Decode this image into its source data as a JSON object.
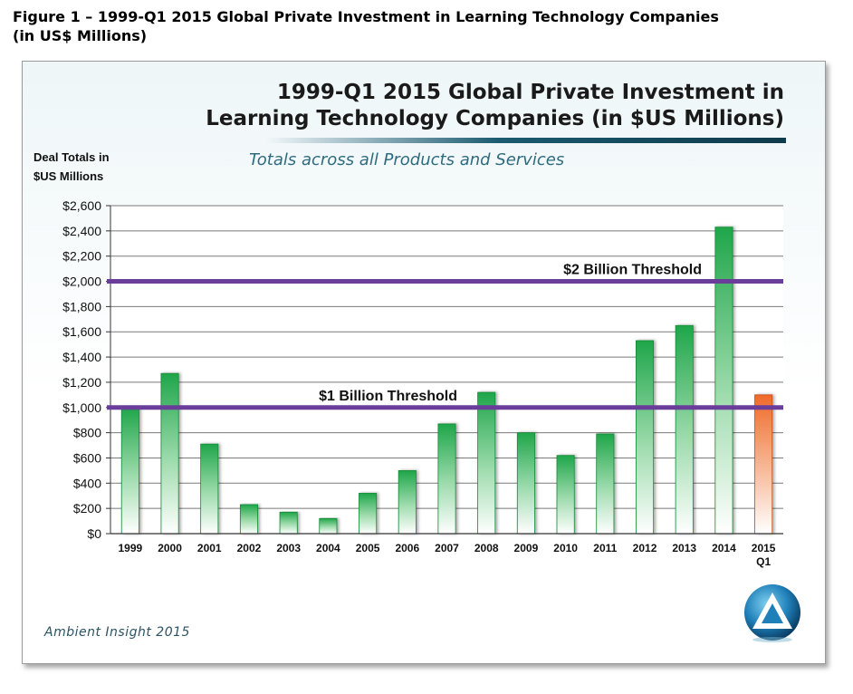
{
  "figure_caption_line1": "Figure 1 – 1999-Q1 2015 Global Private Investment in Learning Technology Companies",
  "figure_caption_line2": "(in US$ Millions)",
  "chart_data": {
    "type": "bar",
    "title_line1": "1999-Q1 2015 Global Private Investment in",
    "title_line2": "Learning Technology Companies (in $US Millions)",
    "subtitle": "Totals across all Products and Services",
    "ylabel_line1": "Deal Totals in",
    "ylabel_line2": "$US Millions",
    "categories": [
      "1999",
      "2000",
      "2001",
      "2002",
      "2003",
      "2004",
      "2005",
      "2006",
      "2007",
      "2008",
      "2009",
      "2010",
      "2011",
      "2012",
      "2013",
      "2014",
      "2015 Q1"
    ],
    "category_lines": [
      [
        "1999"
      ],
      [
        "2000"
      ],
      [
        "2001"
      ],
      [
        "2002"
      ],
      [
        "2003"
      ],
      [
        "2004"
      ],
      [
        "2005"
      ],
      [
        "2006"
      ],
      [
        "2007"
      ],
      [
        "2008"
      ],
      [
        "2009"
      ],
      [
        "2010"
      ],
      [
        "2011"
      ],
      [
        "2012"
      ],
      [
        "2013"
      ],
      [
        "2014"
      ],
      [
        "2015",
        "Q1"
      ]
    ],
    "values": [
      1000,
      1270,
      710,
      230,
      170,
      120,
      320,
      500,
      870,
      1120,
      800,
      620,
      790,
      1530,
      1650,
      2430,
      1100
    ],
    "ylim": [
      0,
      2600
    ],
    "yticks": [
      0,
      200,
      400,
      600,
      800,
      1000,
      1200,
      1400,
      1600,
      1800,
      2000,
      2200,
      2400,
      2600
    ],
    "ytick_labels": [
      "$0",
      "$200",
      "$400",
      "$600",
      "$800",
      "$1,000",
      "$1,200",
      "$1,400",
      "$1,600",
      "$1,800",
      "$2,000",
      "$2,200",
      "$2,400",
      "$2,600"
    ],
    "grid": true,
    "thresholds": [
      {
        "value": 2000,
        "label": "$2 Billion  Threshold"
      },
      {
        "value": 1000,
        "label": "$1 Billion  Threshold"
      }
    ],
    "colors": {
      "bar_green_top": "#1fa64a",
      "bar_orange_top": "#ef6a2a",
      "threshold": "#6a3d9a",
      "grid": "#7a7a7a"
    },
    "highlight_category": "2015 Q1"
  },
  "footer": "Ambient Insight 2015",
  "logo_icon": "triangle-globe-logo-icon"
}
